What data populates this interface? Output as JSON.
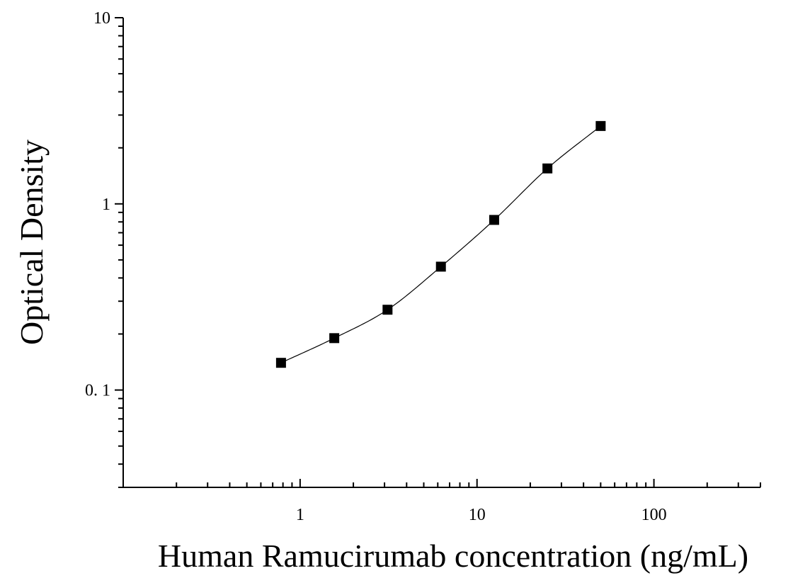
{
  "chart_data": {
    "type": "scatter",
    "title": "",
    "xlabel": "Human Ramucirumab concentration (ng/mL)",
    "ylabel": "Optical Density",
    "xscale": "log",
    "yscale": "log",
    "xlim": [
      0.1,
      400
    ],
    "ylim": [
      0.03,
      10
    ],
    "xticks": [
      1,
      10,
      100
    ],
    "xtick_labels": [
      "1",
      "10",
      "100"
    ],
    "yticks": [
      0.1,
      1,
      10
    ],
    "ytick_labels": [
      "0. 1",
      "1",
      "10"
    ],
    "grid": false,
    "legend": "none",
    "series": [
      {
        "marker": "square",
        "fit_line": true,
        "x": [
          0.78,
          1.56,
          3.12,
          6.25,
          12.5,
          25,
          50
        ],
        "y": [
          0.14,
          0.19,
          0.27,
          0.46,
          0.82,
          1.55,
          2.62
        ]
      }
    ],
    "colors": {
      "marker": "#000000",
      "line": "#000000",
      "axis": "#000000"
    }
  }
}
